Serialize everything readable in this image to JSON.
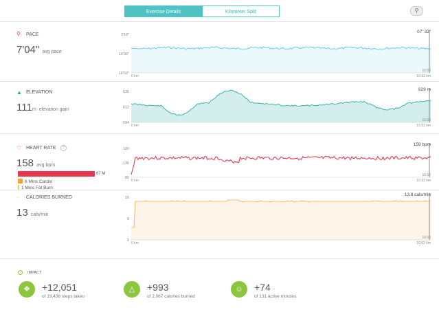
{
  "tabs": [
    {
      "label": "Exercise Details",
      "active": true
    },
    {
      "label": "Kilometer Split",
      "active": false
    }
  ],
  "pin_icon": "map-pin-icon",
  "sections": {
    "pace": {
      "title": "PACE",
      "icon": "location-pin-icon",
      "color": "#e8384f",
      "value": "7'04\"",
      "unit": "avg pace",
      "chart_data": {
        "type": "line",
        "color": "#5bc8e6",
        "y_ticks": [
          "3'18\"",
          "10'30\"",
          "18'58\""
        ],
        "x_start": "0 km",
        "x_end_top": "10.52",
        "x_end_bottom": "10.52 km",
        "max_label": "07' 32\""
      }
    },
    "elevation": {
      "title": "ELEVATION",
      "icon": "mountain-icon",
      "color": "#2aa9a3",
      "value": "111",
      "value_unit": "m",
      "unit": "elevation gain",
      "chart_data": {
        "type": "area",
        "color": "#2aa9a3",
        "y_ticks": [
          "630",
          "612",
          "594"
        ],
        "x_start": "0 km",
        "x_end_top": "10.52",
        "x_end_bottom": "10.52 km",
        "max_label": "629 m"
      }
    },
    "heart": {
      "title": "HEART RATE",
      "icon": "heart-icon",
      "color": "#e8384f",
      "value": "158",
      "unit": "avg bpm",
      "bar_label": "67 M",
      "zones": [
        {
          "label": "6 Mins Cardio",
          "color": "#f7a23b"
        },
        {
          "label": "1 Mins Fat Burn",
          "color": "#fbd24e"
        }
      ],
      "info_icon": "info-icon",
      "chart_data": {
        "type": "line",
        "color": "#e8384f",
        "y_ticks": [
          "180",
          "130",
          "80"
        ],
        "x_start": "0 km",
        "x_end_top": "10.52",
        "x_end_bottom": "10.52 km",
        "max_label": "159 bpm"
      }
    },
    "calories": {
      "title": "CALORIES BURNED",
      "icon": "flame-icon",
      "color": "#f07f3c",
      "value": "13",
      "unit": "cals/min",
      "chart_data": {
        "type": "area",
        "color": "#f7a54d",
        "y_ticks": [
          "16",
          "8",
          "0"
        ],
        "x_start": "0 km",
        "x_end_top": "10.52",
        "x_end_bottom": "10.52 km",
        "max_label": "13.8 cals/min"
      }
    }
  },
  "impact": {
    "title": "IMPACT",
    "items": [
      {
        "icon": "footsteps-icon",
        "value": "+12,051",
        "sub": "of 19,438 steps taken"
      },
      {
        "icon": "flame-icon",
        "value": "+993",
        "sub": "of 2,067 calories burned"
      },
      {
        "icon": "running-icon",
        "value": "+74",
        "sub": "of 131 active minutes"
      }
    ]
  }
}
